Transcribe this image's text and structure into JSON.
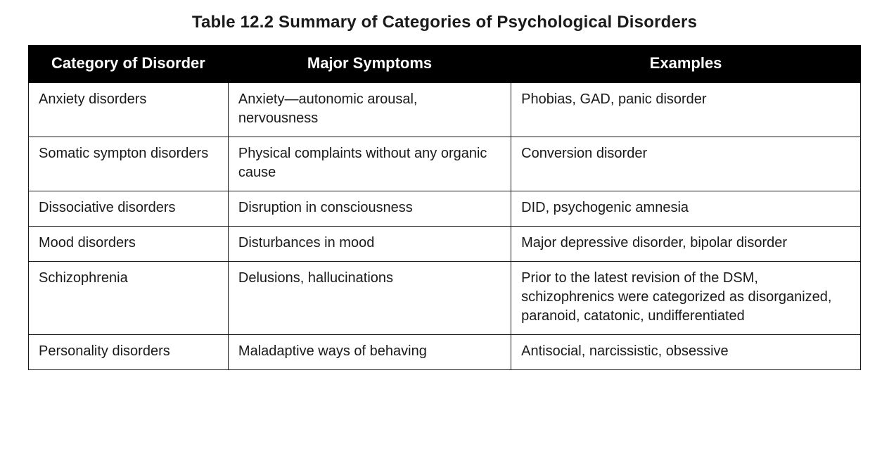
{
  "title": "Table 12.2  Summary of Categories of Psychological Disorders",
  "table": {
    "type": "table",
    "background_color": "#ffffff",
    "border_color": "#1a1a1a",
    "header_bg": "#000000",
    "header_fg": "#ffffff",
    "header_fontsize": 22,
    "header_fontweight": 700,
    "cell_fontsize": 20,
    "title_fontsize": 24,
    "title_fontweight": 700,
    "column_widths_pct": [
      24,
      34,
      42
    ],
    "columns": [
      "Category of Disorder",
      "Major Symptoms",
      "Examples"
    ],
    "rows": [
      {
        "category": "Anxiety disorders",
        "symptoms": "Anxiety—autonomic arousal, nervousness",
        "examples": "Phobias, GAD, panic disorder"
      },
      {
        "category": "Somatic sympton disorders",
        "symptoms": "Physical complaints without any organic cause",
        "examples": "Conversion disorder"
      },
      {
        "category": "Dissociative disorders",
        "symptoms": "Disruption in consciousness",
        "examples": "DID, psychogenic amnesia"
      },
      {
        "category": "Mood disorders",
        "symptoms": "Disturbances in mood",
        "examples": "Major depressive disorder, bipolar disorder"
      },
      {
        "category": "Schizophrenia",
        "symptoms": "Delusions, hallucinations",
        "examples": "Prior to the latest revision of the DSM, schizophrenics were categorized as disorganized, paranoid, catatonic, undifferentiated"
      },
      {
        "category": "Personality disorders",
        "symptoms": "Maladaptive ways of behaving",
        "examples": "Antisocial, narcissistic, obsessive"
      }
    ]
  }
}
